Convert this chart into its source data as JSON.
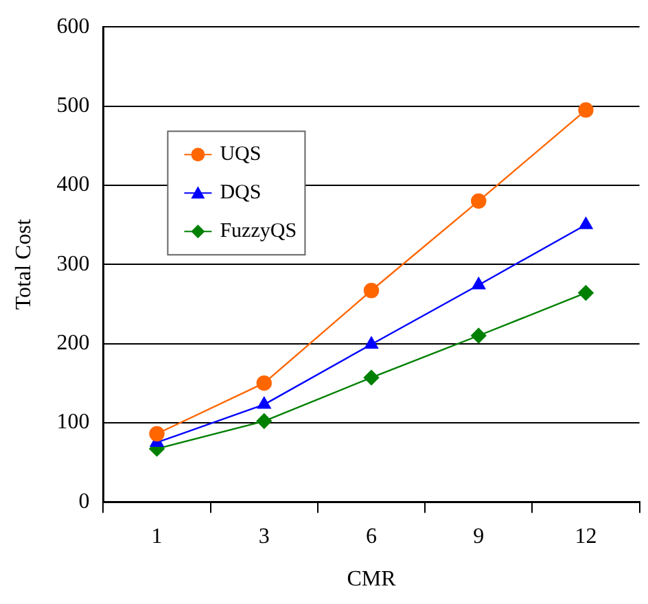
{
  "chart_data": {
    "type": "line",
    "xlabel": "CMR",
    "ylabel": "Total Cost",
    "categories": [
      "1",
      "3",
      "6",
      "9",
      "12"
    ],
    "series": [
      {
        "name": "UQS",
        "color": "#ff6600",
        "values": [
          86,
          150,
          267,
          380,
          495
        ],
        "marker": "circle"
      },
      {
        "name": "DQS",
        "color": "#0000ff",
        "values": [
          75,
          123,
          199,
          274,
          350
        ],
        "marker": "triangle"
      },
      {
        "name": "FuzzyQS",
        "color": "#008000",
        "values": [
          67,
          102,
          157,
          210,
          264
        ],
        "marker": "diamond"
      }
    ],
    "ylim": [
      0,
      600
    ],
    "yticks": [
      0,
      100,
      200,
      300,
      400,
      500,
      600
    ],
    "grid": "y",
    "legend": "top left"
  }
}
